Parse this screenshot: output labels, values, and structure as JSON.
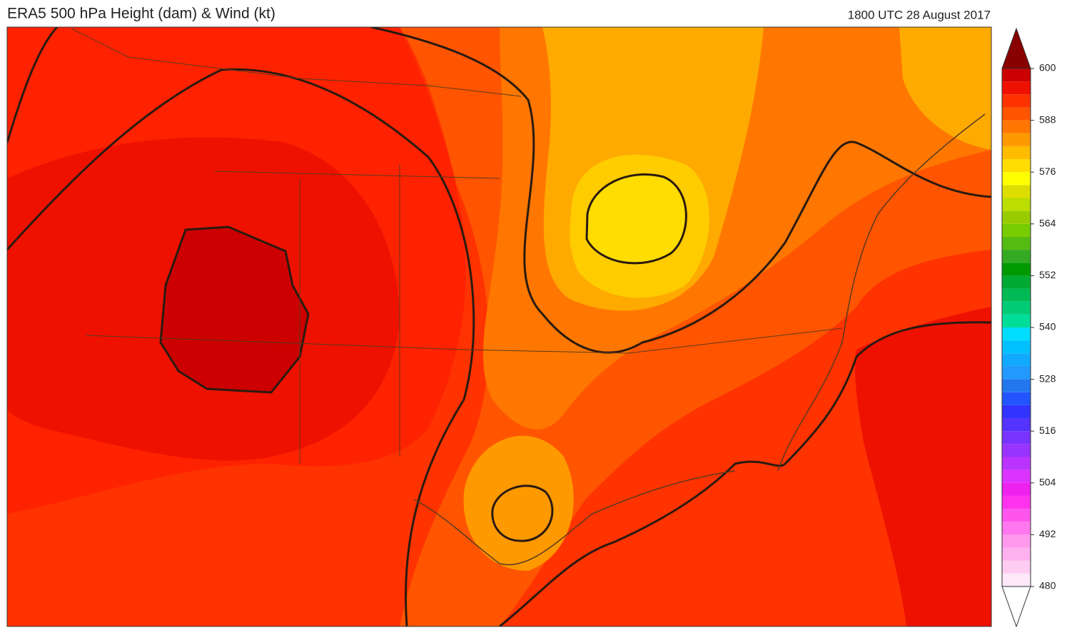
{
  "header": {
    "title": "ERA5 500 hPa Height (dam) & Wind (kt)",
    "date": "1800 UTC 28 August 2017"
  },
  "colorbar": {
    "ticks": [
      480,
      492,
      504,
      516,
      528,
      540,
      552,
      564,
      576,
      588,
      600
    ],
    "colors": [
      "#ffe8f8",
      "#ffccf2",
      "#ffb0ee",
      "#ff99ee",
      "#ff77ee",
      "#ff55ee",
      "#ff33ee",
      "#ee22ee",
      "#dd33ff",
      "#bb33ff",
      "#9933ff",
      "#7733ff",
      "#5533ff",
      "#3333ff",
      "#2255ff",
      "#2277ee",
      "#2299ff",
      "#11aaff",
      "#00c0ff",
      "#00ddff",
      "#00dd99",
      "#00cc77",
      "#00bb55",
      "#00aa33",
      "#009900",
      "#33aa22",
      "#55bb11",
      "#77cc00",
      "#99cc00",
      "#bbdd00",
      "#dddd00",
      "#ffff00",
      "#ffdd00",
      "#ffbb00",
      "#ff9900",
      "#ff7700",
      "#ff5500",
      "#ff3300",
      "#ee1100",
      "#cc0000"
    ],
    "over_color": "#880000",
    "under_color": "#ffffff"
  }
}
